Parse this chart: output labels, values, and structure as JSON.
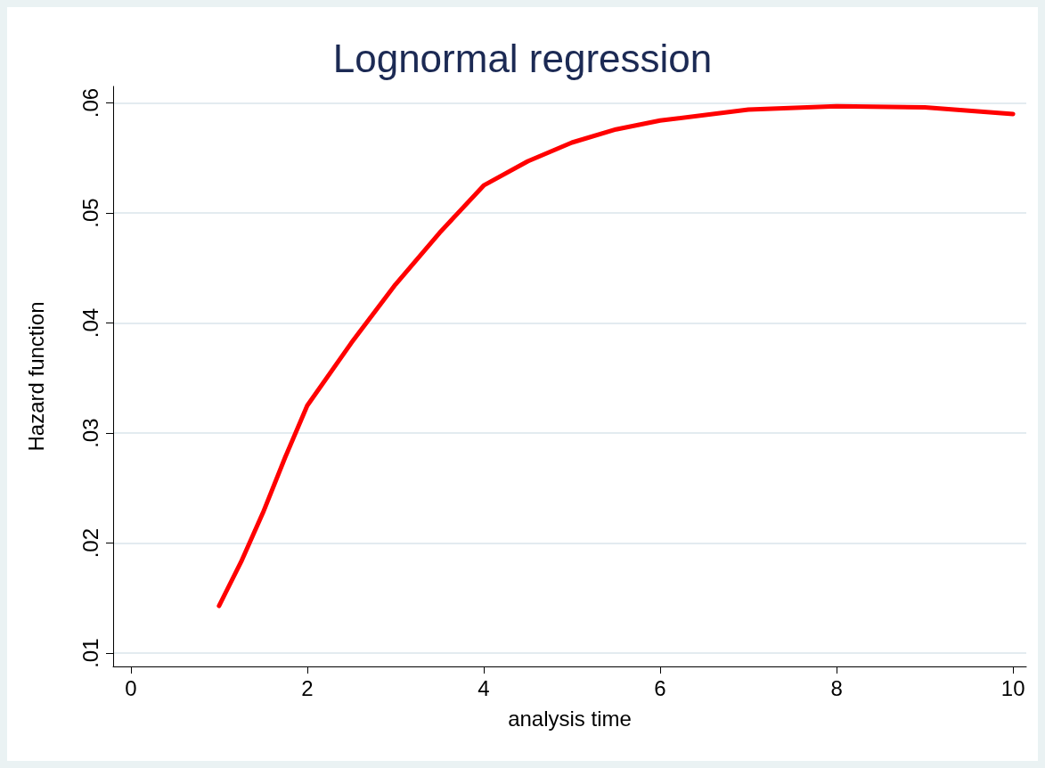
{
  "chart_data": {
    "type": "line",
    "title": "Lognormal regression",
    "xlabel": "analysis time",
    "ylabel": "Hazard function",
    "x": [
      1,
      1.25,
      1.5,
      1.75,
      2,
      2.5,
      3,
      3.5,
      4,
      4.5,
      5,
      5.5,
      6,
      7,
      8,
      9,
      10
    ],
    "series": [
      {
        "color": "#ff0000",
        "values": [
          0.0143,
          0.0183,
          0.0228,
          0.0278,
          0.0325,
          0.0382,
          0.0435,
          0.0482,
          0.0525,
          0.0547,
          0.0564,
          0.0576,
          0.0584,
          0.0594,
          0.0597,
          0.0596,
          0.059
        ]
      }
    ],
    "xlim": [
      -0.2,
      10.15
    ],
    "ylim": [
      0.0088,
      0.0615
    ],
    "xticks": [
      0,
      2,
      4,
      6,
      8,
      10
    ],
    "yticks": [
      {
        "value": 0.01,
        "label": ".01"
      },
      {
        "value": 0.02,
        "label": ".02"
      },
      {
        "value": 0.03,
        "label": ".03"
      },
      {
        "value": 0.04,
        "label": ".04"
      },
      {
        "value": 0.05,
        "label": ".05"
      },
      {
        "value": 0.06,
        "label": ".06"
      }
    ],
    "grid": "y",
    "marker": "none",
    "line_style": "solid"
  }
}
